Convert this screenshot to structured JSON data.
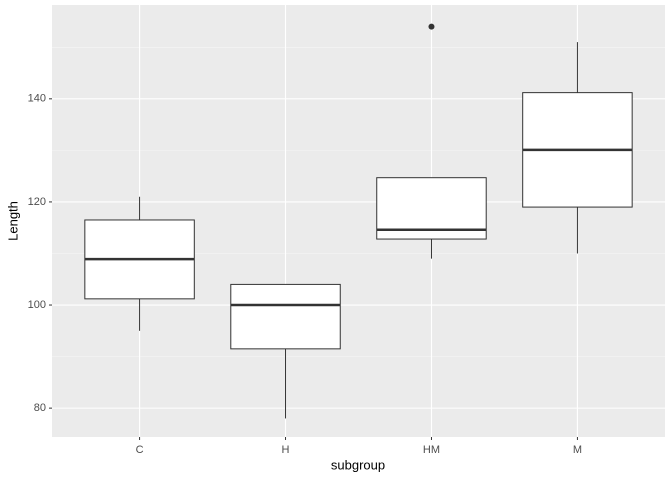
{
  "chart_data": {
    "type": "box",
    "x_label": "subgroup",
    "y_label": "Length",
    "categories": [
      "C",
      "H",
      "HM",
      "M"
    ],
    "boxes": [
      {
        "min": 95,
        "q1": 101.2,
        "median": 108.9,
        "q3": 116.5,
        "max": 121,
        "outliers": []
      },
      {
        "min": 78,
        "q1": 91.5,
        "median": 100,
        "q3": 104,
        "max": 104,
        "outliers": []
      },
      {
        "min": 109,
        "q1": 112.8,
        "median": 114.6,
        "q3": 124.7,
        "max": 124.7,
        "outliers": [
          154
        ]
      },
      {
        "min": 110,
        "q1": 119,
        "median": 130.1,
        "q3": 141.2,
        "max": 151,
        "outliers": []
      }
    ],
    "box_fill": "#ffffff",
    "box_stroke": "#333333",
    "ylim": [
      74.4,
      158.2
    ],
    "yticks": [
      80,
      100,
      120,
      140
    ],
    "minor_yticks": [
      90,
      110,
      130,
      150
    ],
    "grid": true
  }
}
